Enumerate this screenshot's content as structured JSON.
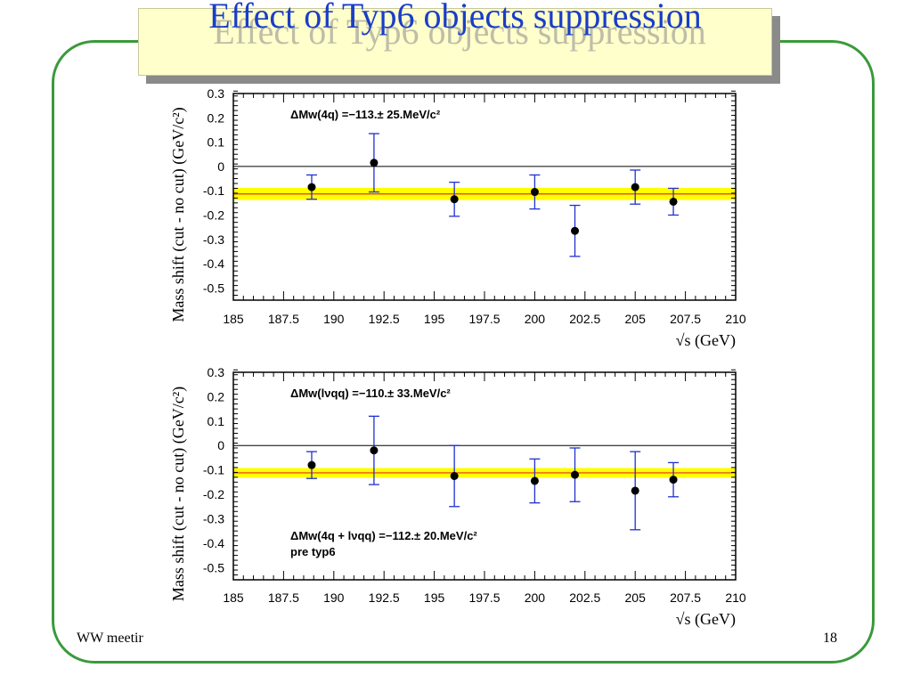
{
  "slide": {
    "title": "Effect of Typ6 objects suppression",
    "footer_left": "WW meetir",
    "page_number": "18"
  },
  "colors": {
    "frame": "#3a9a3a",
    "title_text": "#1a3dc8",
    "title_box": "#ffffcc",
    "band": "#ffff00",
    "mean_line": "#e03030",
    "error_bar": "#2030d0",
    "point": "#000000"
  },
  "chart_data": [
    {
      "type": "scatter",
      "panel": "top",
      "xlabel": "√s (GeV)",
      "ylabel": "Mass shift (cut - no cut) (GeV/c²)",
      "xlim": [
        185,
        210
      ],
      "ylim": [
        -0.55,
        0.3
      ],
      "x_ticks": [
        "185",
        "187.5",
        "190",
        "192.5",
        "195",
        "197.5",
        "200",
        "202.5",
        "205",
        "207.5",
        "210"
      ],
      "y_ticks": [
        "0.3",
        "0.2",
        "0.1",
        "0",
        "-0.1",
        "-0.2",
        "-0.3",
        "-0.4",
        "-0.5"
      ],
      "annotation": "ΔMw(4q) =−113.± 25.MeV/c²",
      "band": {
        "center": -0.113,
        "half_width": 0.025
      },
      "points": [
        {
          "x": 188.9,
          "y": -0.085,
          "err": 0.05
        },
        {
          "x": 192.0,
          "y": 0.015,
          "err": 0.12
        },
        {
          "x": 196.0,
          "y": -0.135,
          "err": 0.07
        },
        {
          "x": 200.0,
          "y": -0.105,
          "err": 0.07
        },
        {
          "x": 202.0,
          "y": -0.265,
          "err": 0.105
        },
        {
          "x": 205.0,
          "y": -0.085,
          "err": 0.07
        },
        {
          "x": 206.9,
          "y": -0.145,
          "err": 0.055
        }
      ]
    },
    {
      "type": "scatter",
      "panel": "bottom",
      "xlabel": "√s (GeV)",
      "ylabel": "Mass shift (cut - no cut) (GeV/c²)",
      "xlim": [
        185,
        210
      ],
      "ylim": [
        -0.55,
        0.3
      ],
      "x_ticks": [
        "185",
        "187.5",
        "190",
        "192.5",
        "195",
        "197.5",
        "200",
        "202.5",
        "205",
        "207.5",
        "210"
      ],
      "y_ticks": [
        "0.3",
        "0.2",
        "0.1",
        "0",
        "-0.1",
        "-0.2",
        "-0.3",
        "-0.4",
        "-0.5"
      ],
      "annotation": "ΔMw(lνqq) =−110.± 33.MeV/c²",
      "annotation2": "ΔMw(4q + lνqq) =−112.± 20.MeV/c²",
      "annotation3": "pre typ6",
      "band": {
        "center": -0.112,
        "half_width": 0.02
      },
      "points": [
        {
          "x": 188.9,
          "y": -0.08,
          "err": 0.055
        },
        {
          "x": 192.0,
          "y": -0.02,
          "err": 0.14
        },
        {
          "x": 196.0,
          "y": -0.125,
          "err": 0.125
        },
        {
          "x": 200.0,
          "y": -0.145,
          "err": 0.09
        },
        {
          "x": 202.0,
          "y": -0.12,
          "err": 0.11
        },
        {
          "x": 205.0,
          "y": -0.185,
          "err": 0.16
        },
        {
          "x": 206.9,
          "y": -0.14,
          "err": 0.07
        }
      ]
    }
  ]
}
